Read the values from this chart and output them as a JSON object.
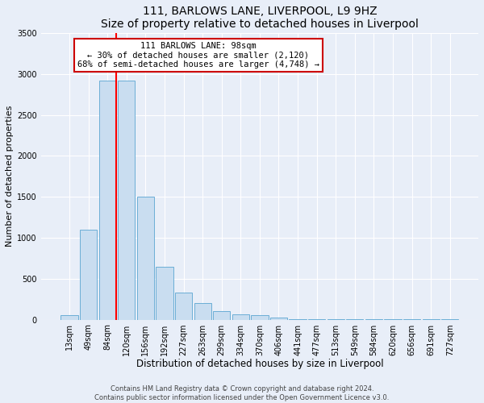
{
  "title": "111, BARLOWS LANE, LIVERPOOL, L9 9HZ",
  "subtitle": "Size of property relative to detached houses in Liverpool",
  "xlabel": "Distribution of detached houses by size in Liverpool",
  "ylabel": "Number of detached properties",
  "bar_labels": [
    "13sqm",
    "49sqm",
    "84sqm",
    "120sqm",
    "156sqm",
    "192sqm",
    "227sqm",
    "263sqm",
    "299sqm",
    "334sqm",
    "370sqm",
    "406sqm",
    "441sqm",
    "477sqm",
    "513sqm",
    "549sqm",
    "584sqm",
    "620sqm",
    "656sqm",
    "691sqm",
    "727sqm"
  ],
  "bar_values": [
    50,
    1100,
    2920,
    2920,
    1500,
    650,
    330,
    200,
    100,
    60,
    50,
    20,
    10,
    5,
    3,
    2,
    1,
    1,
    1,
    1,
    1
  ],
  "bar_color": "#c9ddf0",
  "bar_edge_color": "#6baed6",
  "annotation_title": "111 BARLOWS LANE: 98sqm",
  "annotation_line1": "← 30% of detached houses are smaller (2,120)",
  "annotation_line2": "68% of semi-detached houses are larger (4,748) →",
  "annotation_box_color": "#ffffff",
  "annotation_box_edge": "#cc0000",
  "ylim": [
    0,
    3500
  ],
  "yticks": [
    0,
    500,
    1000,
    1500,
    2000,
    2500,
    3000,
    3500
  ],
  "footer1": "Contains HM Land Registry data © Crown copyright and database right 2024.",
  "footer2": "Contains public sector information licensed under the Open Government Licence v3.0.",
  "background_color": "#e8eef8",
  "plot_background": "#e8eef8",
  "grid_color": "#ffffff",
  "title_fontsize": 10,
  "xlabel_fontsize": 8.5,
  "ylabel_fontsize": 8,
  "tick_fontsize": 7,
  "footer_fontsize": 6,
  "annot_fontsize": 7.5
}
